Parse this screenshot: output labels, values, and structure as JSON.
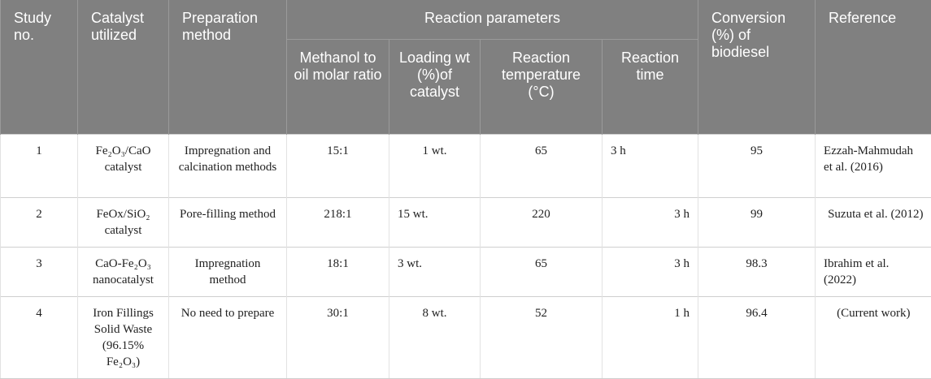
{
  "header": {
    "study_no": "Study no.",
    "catalyst": "Catalyst utilized",
    "preparation": "Preparation method",
    "reaction_parameters": "Reaction parameters",
    "parameters": [
      "Methanol to oil molar ratio",
      "Loading wt (%)of catalyst",
      "Reaction temperature (°C)",
      "Reaction time"
    ],
    "conversion": "Conversion (%) of biodiesel",
    "reference": "Reference"
  },
  "rows": [
    [
      "1",
      "Fe₂O₃/CaO catalyst",
      "Impregnation and calcination methods",
      "15:1",
      "1 wt.",
      "65",
      "3 h",
      "95",
      "Ezzah-Mahmudah et al. (2016)"
    ],
    [
      "2",
      "FeOx/SiO₂ catalyst",
      "Pore-filling method",
      "218:1",
      "15 wt.",
      "220",
      "3 h",
      "99",
      "Suzuta et al. (2012)"
    ],
    [
      "3",
      "CaO-Fe₂O₃ nanocatalyst",
      "Impregnation method",
      "18:1",
      "3 wt.",
      "65",
      "3 h",
      "98.3",
      "Ibrahim et al. (2022)"
    ],
    [
      "4",
      "Iron Fillings Solid Waste (96.15% Fe₂O₃)",
      "No need to prepare",
      "30:1",
      "8 wt.",
      "52",
      "1 h",
      "96.4",
      "(Current work)"
    ]
  ]
}
